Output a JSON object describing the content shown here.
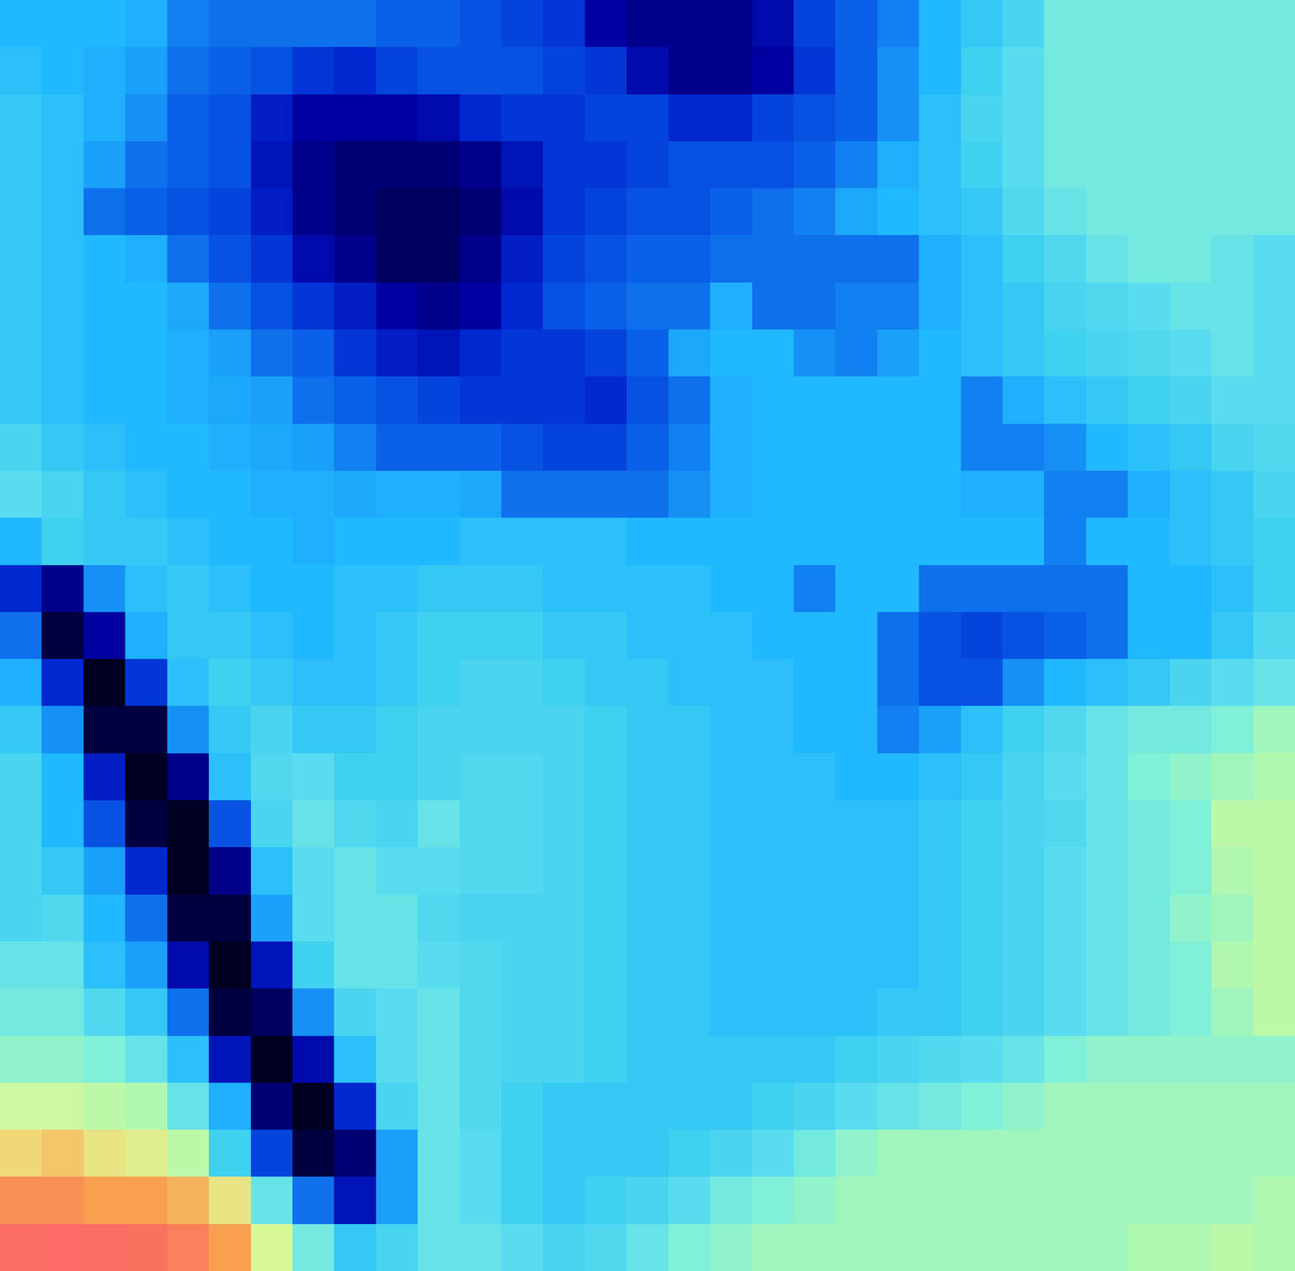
{
  "chart_data": {
    "type": "heatmap",
    "tick_labels": false,
    "zlim": [
      0,
      100
    ],
    "cells": [
      [
        42,
        42,
        42,
        40,
        32,
        30,
        30,
        30,
        30,
        28,
        28,
        26,
        24,
        22,
        12,
        10,
        10,
        10,
        14,
        24,
        28,
        32,
        42,
        46,
        50,
        58,
        58,
        58,
        58,
        58,
        58
      ],
      [
        44,
        42,
        40,
        36,
        30,
        28,
        26,
        22,
        20,
        24,
        26,
        26,
        26,
        24,
        22,
        14,
        10,
        10,
        12,
        22,
        28,
        34,
        42,
        48,
        54,
        58,
        58,
        58,
        58,
        58,
        58
      ],
      [
        46,
        44,
        40,
        34,
        28,
        26,
        18,
        12,
        12,
        12,
        14,
        20,
        22,
        22,
        24,
        24,
        20,
        20,
        24,
        26,
        28,
        34,
        44,
        50,
        54,
        58,
        58,
        58,
        58,
        58,
        58
      ],
      [
        46,
        44,
        36,
        30,
        28,
        26,
        16,
        10,
        8,
        8,
        8,
        10,
        16,
        22,
        22,
        24,
        26,
        26,
        26,
        28,
        32,
        40,
        44,
        48,
        54,
        58,
        58,
        58,
        58,
        58,
        58
      ],
      [
        46,
        44,
        30,
        28,
        26,
        24,
        18,
        10,
        8,
        6,
        6,
        8,
        14,
        22,
        24,
        26,
        26,
        28,
        30,
        32,
        38,
        42,
        44,
        46,
        52,
        56,
        58,
        58,
        58,
        58,
        58
      ],
      [
        46,
        44,
        42,
        40,
        30,
        26,
        22,
        14,
        10,
        6,
        6,
        10,
        18,
        24,
        26,
        28,
        28,
        30,
        30,
        30,
        30,
        30,
        40,
        44,
        48,
        52,
        56,
        58,
        58,
        56,
        54
      ],
      [
        46,
        44,
        42,
        42,
        38,
        30,
        26,
        22,
        18,
        12,
        10,
        12,
        20,
        26,
        28,
        30,
        30,
        40,
        30,
        30,
        32,
        32,
        40,
        44,
        46,
        50,
        52,
        54,
        56,
        56,
        54
      ],
      [
        46,
        44,
        42,
        42,
        40,
        36,
        30,
        28,
        22,
        18,
        16,
        20,
        22,
        22,
        24,
        28,
        38,
        42,
        42,
        34,
        32,
        36,
        42,
        44,
        46,
        48,
        50,
        52,
        54,
        56,
        54
      ],
      [
        46,
        44,
        42,
        42,
        40,
        38,
        36,
        30,
        28,
        26,
        24,
        22,
        22,
        22,
        20,
        26,
        30,
        40,
        42,
        42,
        42,
        42,
        42,
        32,
        40,
        44,
        46,
        48,
        50,
        54,
        54
      ],
      [
        50,
        46,
        44,
        42,
        42,
        40,
        38,
        36,
        32,
        28,
        28,
        28,
        26,
        24,
        24,
        28,
        32,
        40,
        42,
        42,
        42,
        42,
        42,
        32,
        32,
        34,
        42,
        44,
        46,
        50,
        52
      ],
      [
        54,
        50,
        46,
        44,
        42,
        42,
        40,
        40,
        38,
        40,
        40,
        38,
        30,
        30,
        30,
        30,
        34,
        40,
        42,
        42,
        42,
        42,
        42,
        40,
        40,
        32,
        32,
        40,
        44,
        46,
        50
      ],
      [
        42,
        48,
        46,
        46,
        44,
        42,
        42,
        40,
        42,
        42,
        42,
        44,
        44,
        44,
        44,
        42,
        42,
        42,
        42,
        42,
        42,
        42,
        42,
        42,
        42,
        32,
        42,
        42,
        44,
        46,
        48
      ],
      [
        20,
        10,
        34,
        44,
        46,
        44,
        42,
        42,
        44,
        44,
        46,
        46,
        46,
        44,
        44,
        44,
        44,
        42,
        42,
        32,
        42,
        42,
        30,
        30,
        30,
        30,
        30,
        42,
        42,
        44,
        48
      ],
      [
        30,
        4,
        12,
        40,
        46,
        46,
        44,
        42,
        44,
        46,
        48,
        48,
        48,
        46,
        46,
        44,
        44,
        44,
        42,
        42,
        42,
        30,
        26,
        24,
        26,
        28,
        30,
        42,
        42,
        46,
        52
      ],
      [
        40,
        20,
        2,
        22,
        44,
        48,
        46,
        44,
        44,
        46,
        48,
        50,
        50,
        48,
        46,
        46,
        44,
        44,
        44,
        42,
        42,
        30,
        26,
        26,
        34,
        42,
        44,
        46,
        50,
        54,
        56
      ],
      [
        46,
        34,
        4,
        4,
        34,
        46,
        50,
        46,
        46,
        48,
        50,
        50,
        50,
        50,
        48,
        46,
        46,
        44,
        44,
        42,
        42,
        32,
        36,
        44,
        48,
        52,
        56,
        58,
        58,
        60,
        64
      ],
      [
        50,
        42,
        18,
        2,
        10,
        44,
        52,
        54,
        48,
        48,
        50,
        52,
        52,
        50,
        48,
        46,
        46,
        44,
        44,
        44,
        42,
        42,
        44,
        46,
        50,
        54,
        56,
        60,
        62,
        64,
        66
      ],
      [
        50,
        42,
        26,
        4,
        2,
        26,
        50,
        56,
        52,
        50,
        56,
        52,
        52,
        50,
        48,
        46,
        46,
        44,
        44,
        44,
        44,
        44,
        46,
        48,
        50,
        52,
        56,
        58,
        60,
        68,
        68
      ],
      [
        50,
        46,
        36,
        20,
        2,
        10,
        44,
        54,
        56,
        54,
        54,
        52,
        52,
        50,
        48,
        46,
        46,
        44,
        44,
        44,
        44,
        44,
        46,
        48,
        50,
        54,
        56,
        58,
        60,
        66,
        68
      ],
      [
        50,
        52,
        42,
        30,
        4,
        4,
        36,
        54,
        56,
        56,
        52,
        50,
        50,
        50,
        48,
        46,
        46,
        44,
        44,
        44,
        44,
        44,
        46,
        48,
        50,
        54,
        56,
        58,
        62,
        64,
        68
      ],
      [
        56,
        56,
        44,
        36,
        14,
        2,
        16,
        48,
        56,
        56,
        54,
        52,
        50,
        50,
        48,
        46,
        46,
        44,
        44,
        44,
        44,
        44,
        46,
        48,
        50,
        54,
        56,
        58,
        60,
        66,
        68
      ],
      [
        58,
        58,
        52,
        46,
        30,
        4,
        6,
        34,
        50,
        54,
        56,
        52,
        50,
        50,
        48,
        46,
        46,
        44,
        44,
        44,
        44,
        46,
        46,
        48,
        50,
        54,
        56,
        58,
        60,
        64,
        68
      ],
      [
        62,
        62,
        60,
        56,
        44,
        16,
        2,
        14,
        44,
        54,
        56,
        52,
        50,
        50,
        48,
        46,
        46,
        46,
        46,
        46,
        48,
        50,
        52,
        54,
        56,
        60,
        62,
        62,
        62,
        62,
        62
      ],
      [
        70,
        70,
        68,
        66,
        56,
        40,
        8,
        2,
        20,
        50,
        56,
        52,
        48,
        46,
        46,
        46,
        46,
        46,
        48,
        50,
        54,
        56,
        58,
        60,
        62,
        64,
        64,
        64,
        64,
        64,
        64
      ],
      [
        78,
        80,
        76,
        74,
        68,
        48,
        24,
        4,
        8,
        36,
        56,
        54,
        48,
        46,
        46,
        46,
        48,
        50,
        54,
        58,
        62,
        64,
        64,
        64,
        64,
        64,
        64,
        64,
        64,
        64,
        64
      ],
      [
        86,
        86,
        84,
        84,
        82,
        76,
        56,
        30,
        16,
        36,
        56,
        54,
        48,
        46,
        48,
        50,
        54,
        58,
        60,
        62,
        64,
        64,
        64,
        64,
        64,
        64,
        64,
        64,
        64,
        64,
        66
      ],
      [
        92,
        94,
        92,
        90,
        88,
        84,
        72,
        58,
        46,
        50,
        56,
        56,
        54,
        50,
        52,
        56,
        60,
        62,
        64,
        64,
        64,
        64,
        64,
        64,
        64,
        64,
        64,
        66,
        66,
        68,
        66
      ]
    ]
  }
}
